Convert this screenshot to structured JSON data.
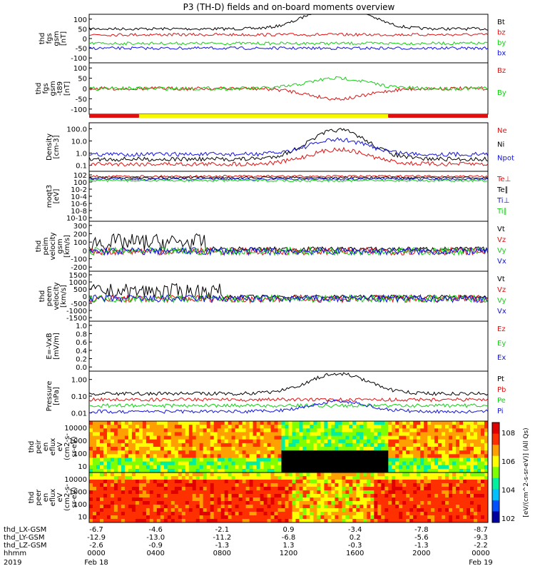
{
  "title": "P3 (TH-D) fields and on-board moments overview",
  "colors": {
    "black": "#000000",
    "red": "#e01010",
    "green": "#10d010",
    "blue": "#1010e0",
    "yellow": "#f8f800"
  },
  "chart_data": [
    {
      "type": "line",
      "id": "fgs_gsm",
      "ylabel": [
        "thd",
        "fgs",
        "gsm",
        "[nT]"
      ],
      "ylim": [
        -100,
        100
      ],
      "ticks": [
        "100",
        "50",
        "0",
        "-50",
        "-100"
      ],
      "series": [
        {
          "name": "Bt",
          "color": "black"
        },
        {
          "name": "bz",
          "color": "red"
        },
        {
          "name": "by",
          "color": "green"
        },
        {
          "name": "bx",
          "color": "blue"
        }
      ]
    },
    {
      "type": "line",
      "id": "fgs_gsm_dc",
      "ylabel": [
        "thd",
        "fgs",
        "gsm",
        "-t89",
        "[nT]"
      ],
      "ylim": [
        -130,
        120
      ],
      "ticks": [
        "100",
        "50",
        "0",
        "-50",
        "-100"
      ],
      "series": [
        {
          "name": "Bz",
          "color": "red"
        },
        {
          "name": "By",
          "color": "green"
        }
      ]
    },
    {
      "type": "bar",
      "id": "region_bar",
      "segments": [
        {
          "from": "0000",
          "to": "0300",
          "color": "red"
        },
        {
          "from": "0300",
          "to": "1800",
          "color": "yellow"
        },
        {
          "from": "1800",
          "to": "2400",
          "color": "red"
        }
      ]
    },
    {
      "type": "line",
      "id": "density",
      "ylabel": [
        "Density",
        "[cm^-3]"
      ],
      "log": true,
      "ylim": [
        0.1,
        300
      ],
      "ticks": [
        "100.0",
        "10.0",
        "1.0",
        "0.1"
      ],
      "series": [
        {
          "name": "Ne",
          "color": "red"
        },
        {
          "name": "Ni",
          "color": "black"
        },
        {
          "name": "Npot",
          "color": "blue"
        }
      ]
    },
    {
      "type": "line",
      "id": "temperature",
      "ylabel": [
        "moqt3",
        "[eV]"
      ],
      "log": true,
      "ticks": [
        "10^2",
        "10^0",
        "10^-2",
        "10^-4",
        "10^-6",
        "10^-8",
        "10^-10"
      ],
      "series": [
        {
          "name": "Te⊥",
          "color": "red"
        },
        {
          "name": "Te∥",
          "color": "black"
        },
        {
          "name": "Ti⊥",
          "color": "blue"
        },
        {
          "name": "Ti∥",
          "color": "green"
        }
      ]
    },
    {
      "type": "line",
      "id": "peim_velocity",
      "ylabel": [
        "thd",
        "peim",
        "velocity",
        "gsm",
        "[km/s]"
      ],
      "ylim": [
        -200,
        300
      ],
      "ticks": [
        "300",
        "200",
        "100",
        "0",
        "-100",
        "-200"
      ],
      "series": [
        {
          "name": "Vt",
          "color": "black"
        },
        {
          "name": "Vz",
          "color": "red"
        },
        {
          "name": "Vy",
          "color": "green"
        },
        {
          "name": "Vx",
          "color": "blue"
        }
      ]
    },
    {
      "type": "line",
      "id": "peem_velocity",
      "ylabel": [
        "thd",
        "peem",
        "velocity",
        "[km/s]"
      ],
      "ylim": [
        -1500,
        1500
      ],
      "ticks": [
        "1500",
        "1000",
        "500",
        "0",
        "-500",
        "-1000",
        "-1500"
      ],
      "series": [
        {
          "name": "Vt",
          "color": "black"
        },
        {
          "name": "Vz",
          "color": "red"
        },
        {
          "name": "Vy",
          "color": "green"
        },
        {
          "name": "Vx",
          "color": "blue"
        }
      ]
    },
    {
      "type": "line",
      "id": "e_field",
      "ylabel": [
        "E=-VxB",
        "[mV/m]"
      ],
      "ylim": [
        0,
        1
      ],
      "ticks": [
        "1.0",
        "0.8",
        "0.6",
        "0.4",
        "0.2",
        "0.0"
      ],
      "series": [
        {
          "name": "Ez",
          "color": "red"
        },
        {
          "name": "Ey",
          "color": "green"
        },
        {
          "name": "Ex",
          "color": "blue"
        }
      ]
    },
    {
      "type": "line",
      "id": "pressure",
      "ylabel": [
        "Pressure",
        "[nPa]"
      ],
      "log": true,
      "ticks": [
        "1.00",
        "0.10",
        "0.01"
      ],
      "series": [
        {
          "name": "Pt",
          "color": "black"
        },
        {
          "name": "Pb",
          "color": "red"
        },
        {
          "name": "Pe",
          "color": "green"
        },
        {
          "name": "Pi",
          "color": "blue"
        }
      ]
    },
    {
      "type": "heatmap",
      "id": "peir_flux",
      "ylabel": [
        "thd",
        "peir",
        "en",
        "eflux",
        "eV",
        "(cm^2-s-",
        "sr-eV)"
      ],
      "log": true,
      "ticks": [
        "10000",
        "1000",
        "100",
        "10"
      ]
    },
    {
      "type": "heatmap",
      "id": "peer_flux",
      "ylabel": [
        "thd",
        "peer",
        "en",
        "eflux",
        "eV",
        "(cm^2-s-",
        "sr-eV)"
      ],
      "log": true,
      "ticks": [
        "10000",
        "1000",
        "100",
        "10"
      ]
    }
  ],
  "colorbar": {
    "ticks": [
      "10^8",
      "10^6",
      "10^4",
      "10^2"
    ],
    "label": "[eV/(cm^2-s-sr-eV)] (All Qs)"
  },
  "xaxis": {
    "rows": [
      {
        "label": "thd_LX-GSM",
        "values": [
          "-6.7",
          "-4.6",
          "-2.1",
          "0.9",
          "-3.4",
          "-7.8",
          "-8.7"
        ]
      },
      {
        "label": "thd_LY-GSM",
        "values": [
          "-12.9",
          "-13.0",
          "-11.2",
          "-6.8",
          "0.2",
          "-5.6",
          "-9.3"
        ]
      },
      {
        "label": "thd_LZ-GSM",
        "values": [
          "-2.6",
          "-0.9",
          "-1.3",
          "1.3",
          "-0.3",
          "-1.3",
          "-2.2"
        ]
      },
      {
        "label": "hhmm",
        "values": [
          "0000",
          "0400",
          "0800",
          "1200",
          "1600",
          "2000",
          "0000"
        ]
      }
    ],
    "year": "2019",
    "date_start": "Feb 18",
    "date_end": "Feb 19"
  }
}
